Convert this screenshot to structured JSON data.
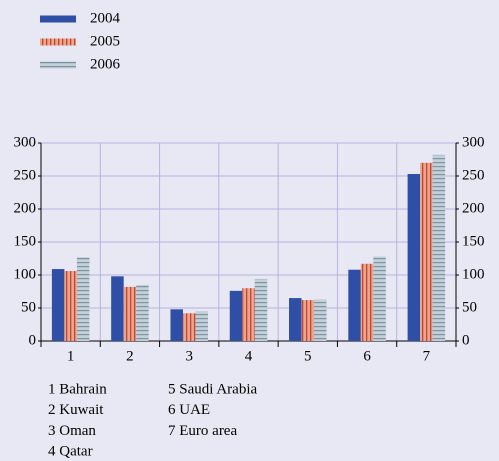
{
  "chart_data": {
    "type": "bar",
    "categories": [
      "1",
      "2",
      "3",
      "4",
      "5",
      "6",
      "7"
    ],
    "series": [
      {
        "name": "2004",
        "color": "#2f4fa6",
        "values": [
          109,
          98,
          48,
          76,
          65,
          108,
          253
        ]
      },
      {
        "name": "2005",
        "color": "#e9a58e",
        "values": [
          106,
          82,
          42,
          80,
          62,
          117,
          270
        ]
      },
      {
        "name": "2006",
        "color": "#c3d0d8",
        "values": [
          127,
          85,
          45,
          94,
          63,
          128,
          282
        ]
      }
    ],
    "ylim": [
      0,
      300
    ],
    "yticks": [
      0,
      50,
      100,
      150,
      200,
      250,
      300
    ],
    "grid": true,
    "right_axis": true,
    "legend": "top-left",
    "notes": [
      [
        "1 Bahrain",
        "2 Kuwait",
        "3 Oman",
        "4 Qatar"
      ],
      [
        "5 Saudi Arabia",
        "6 UAE",
        "7 Euro area"
      ]
    ]
  }
}
